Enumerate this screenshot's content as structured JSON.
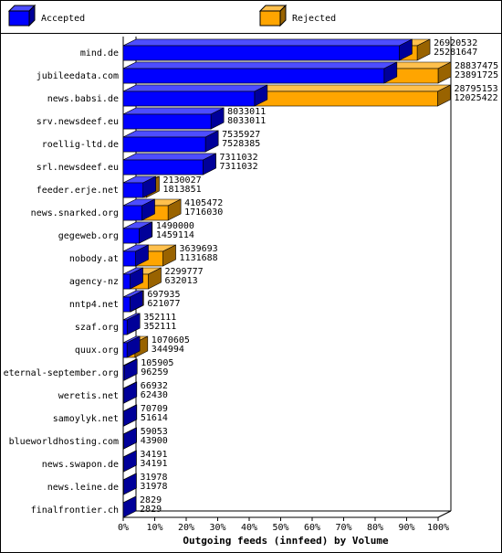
{
  "chart_data": {
    "type": "bar3d",
    "orientation": "horizontal",
    "x_label": "Outgoing feeds (innfeed) by Volume",
    "categories": [
      "mind.de",
      "jubileedata.com",
      "news.babsi.de",
      "srv.newsdeef.eu",
      "roellig-ltd.de",
      "srl.newsdeef.eu",
      "feeder.erje.net",
      "news.snarked.org",
      "gegeweb.org",
      "nobody.at",
      "agency-nz",
      "nntp4.net",
      "szaf.org",
      "quux.org",
      "eternal-september.org",
      "weretis.net",
      "samoylyk.net",
      "blueworldhosting.com",
      "news.swapon.de",
      "news.leine.de",
      "finalfrontier.ch"
    ],
    "series": [
      {
        "name": "Accepted",
        "color": "#0000ff",
        "values": [
          25281647,
          23891725,
          12025422,
          8033011,
          7528385,
          7311032,
          1813851,
          1716030,
          1459114,
          1131688,
          632013,
          621077,
          352111,
          344994,
          96259,
          62430,
          51614,
          43900,
          34191,
          31978,
          2829
        ]
      },
      {
        "name": "Rejected",
        "color": "#ffa500",
        "values": [
          26920532,
          28837475,
          28795153,
          8033011,
          7535927,
          7311032,
          2130027,
          4105472,
          1490000,
          3639693,
          2299777,
          697935,
          352111,
          1070605,
          105905,
          66932,
          70709,
          59053,
          34191,
          31978,
          2829
        ]
      }
    ],
    "xlim": [
      0,
      100
    ],
    "xticks": [
      {
        "value": 0,
        "label": "0%"
      },
      {
        "value": 10,
        "label": "10%"
      },
      {
        "value": 20,
        "label": "20%"
      },
      {
        "value": 30,
        "label": "30%"
      },
      {
        "value": 40,
        "label": "40%"
      },
      {
        "value": 50,
        "label": "50%"
      },
      {
        "value": 60,
        "label": "60%"
      },
      {
        "value": 70,
        "label": "70%"
      },
      {
        "value": 80,
        "label": "80%"
      },
      {
        "value": 90,
        "label": "90%"
      },
      {
        "value": 100,
        "label": "100%"
      }
    ]
  }
}
